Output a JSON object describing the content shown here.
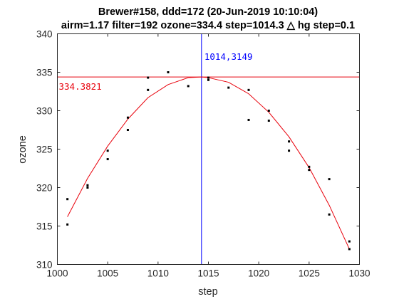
{
  "chart_data": {
    "type": "scatter",
    "title_line1": "Brewer#158, ddd=172 (20-Jun-2019 10:10:04)",
    "title_line2": "airm=1.17  filter=192 ozone=334.4  step=1014.3 △ hg step=0.1",
    "xlabel": "step",
    "ylabel": "ozone",
    "xlim": [
      1000,
      1030
    ],
    "ylim": [
      310,
      340
    ],
    "xticks": [
      1000,
      1005,
      1010,
      1015,
      1020,
      1025,
      1030
    ],
    "yticks": [
      310,
      315,
      320,
      325,
      330,
      335,
      340
    ],
    "grid": false,
    "series": [
      {
        "kind": "points",
        "color": "#000000",
        "x": [
          1001,
          1001,
          1003,
          1003,
          1005,
          1005,
          1007,
          1007,
          1009,
          1009,
          1011,
          1013,
          1015,
          1015,
          1017,
          1019,
          1019,
          1021,
          1021,
          1023,
          1023,
          1025,
          1025,
          1027,
          1027,
          1029,
          1029
        ],
        "y": [
          318.5,
          315.2,
          320.3,
          320.0,
          324.8,
          323.7,
          329.1,
          327.5,
          334.3,
          332.7,
          335.0,
          333.2,
          334.3,
          334.0,
          333.0,
          332.7,
          328.8,
          330.0,
          328.7,
          326.0,
          324.8,
          322.7,
          322.3,
          321.1,
          316.5,
          313.0,
          312.0
        ]
      },
      {
        "kind": "fit",
        "color": "#e8000b",
        "x": [
          1001,
          1003,
          1005,
          1007,
          1009,
          1011,
          1013,
          1014.3149,
          1015,
          1017,
          1019,
          1021,
          1023,
          1025,
          1027,
          1029
        ],
        "y": [
          316.2,
          321.2,
          325.4,
          328.9,
          331.7,
          333.4,
          334.3,
          334.3821,
          334.3,
          333.7,
          332.2,
          329.8,
          326.6,
          322.6,
          317.7,
          312.0
        ]
      }
    ],
    "annotations": {
      "vertical_line_x": 1014.3149,
      "vertical_line_color": "#0000ff",
      "vertical_label": "1014,3149",
      "horizontal_line_y": 334.3821,
      "horizontal_line_color": "#e8000b",
      "horizontal_label": "334.3821"
    }
  }
}
